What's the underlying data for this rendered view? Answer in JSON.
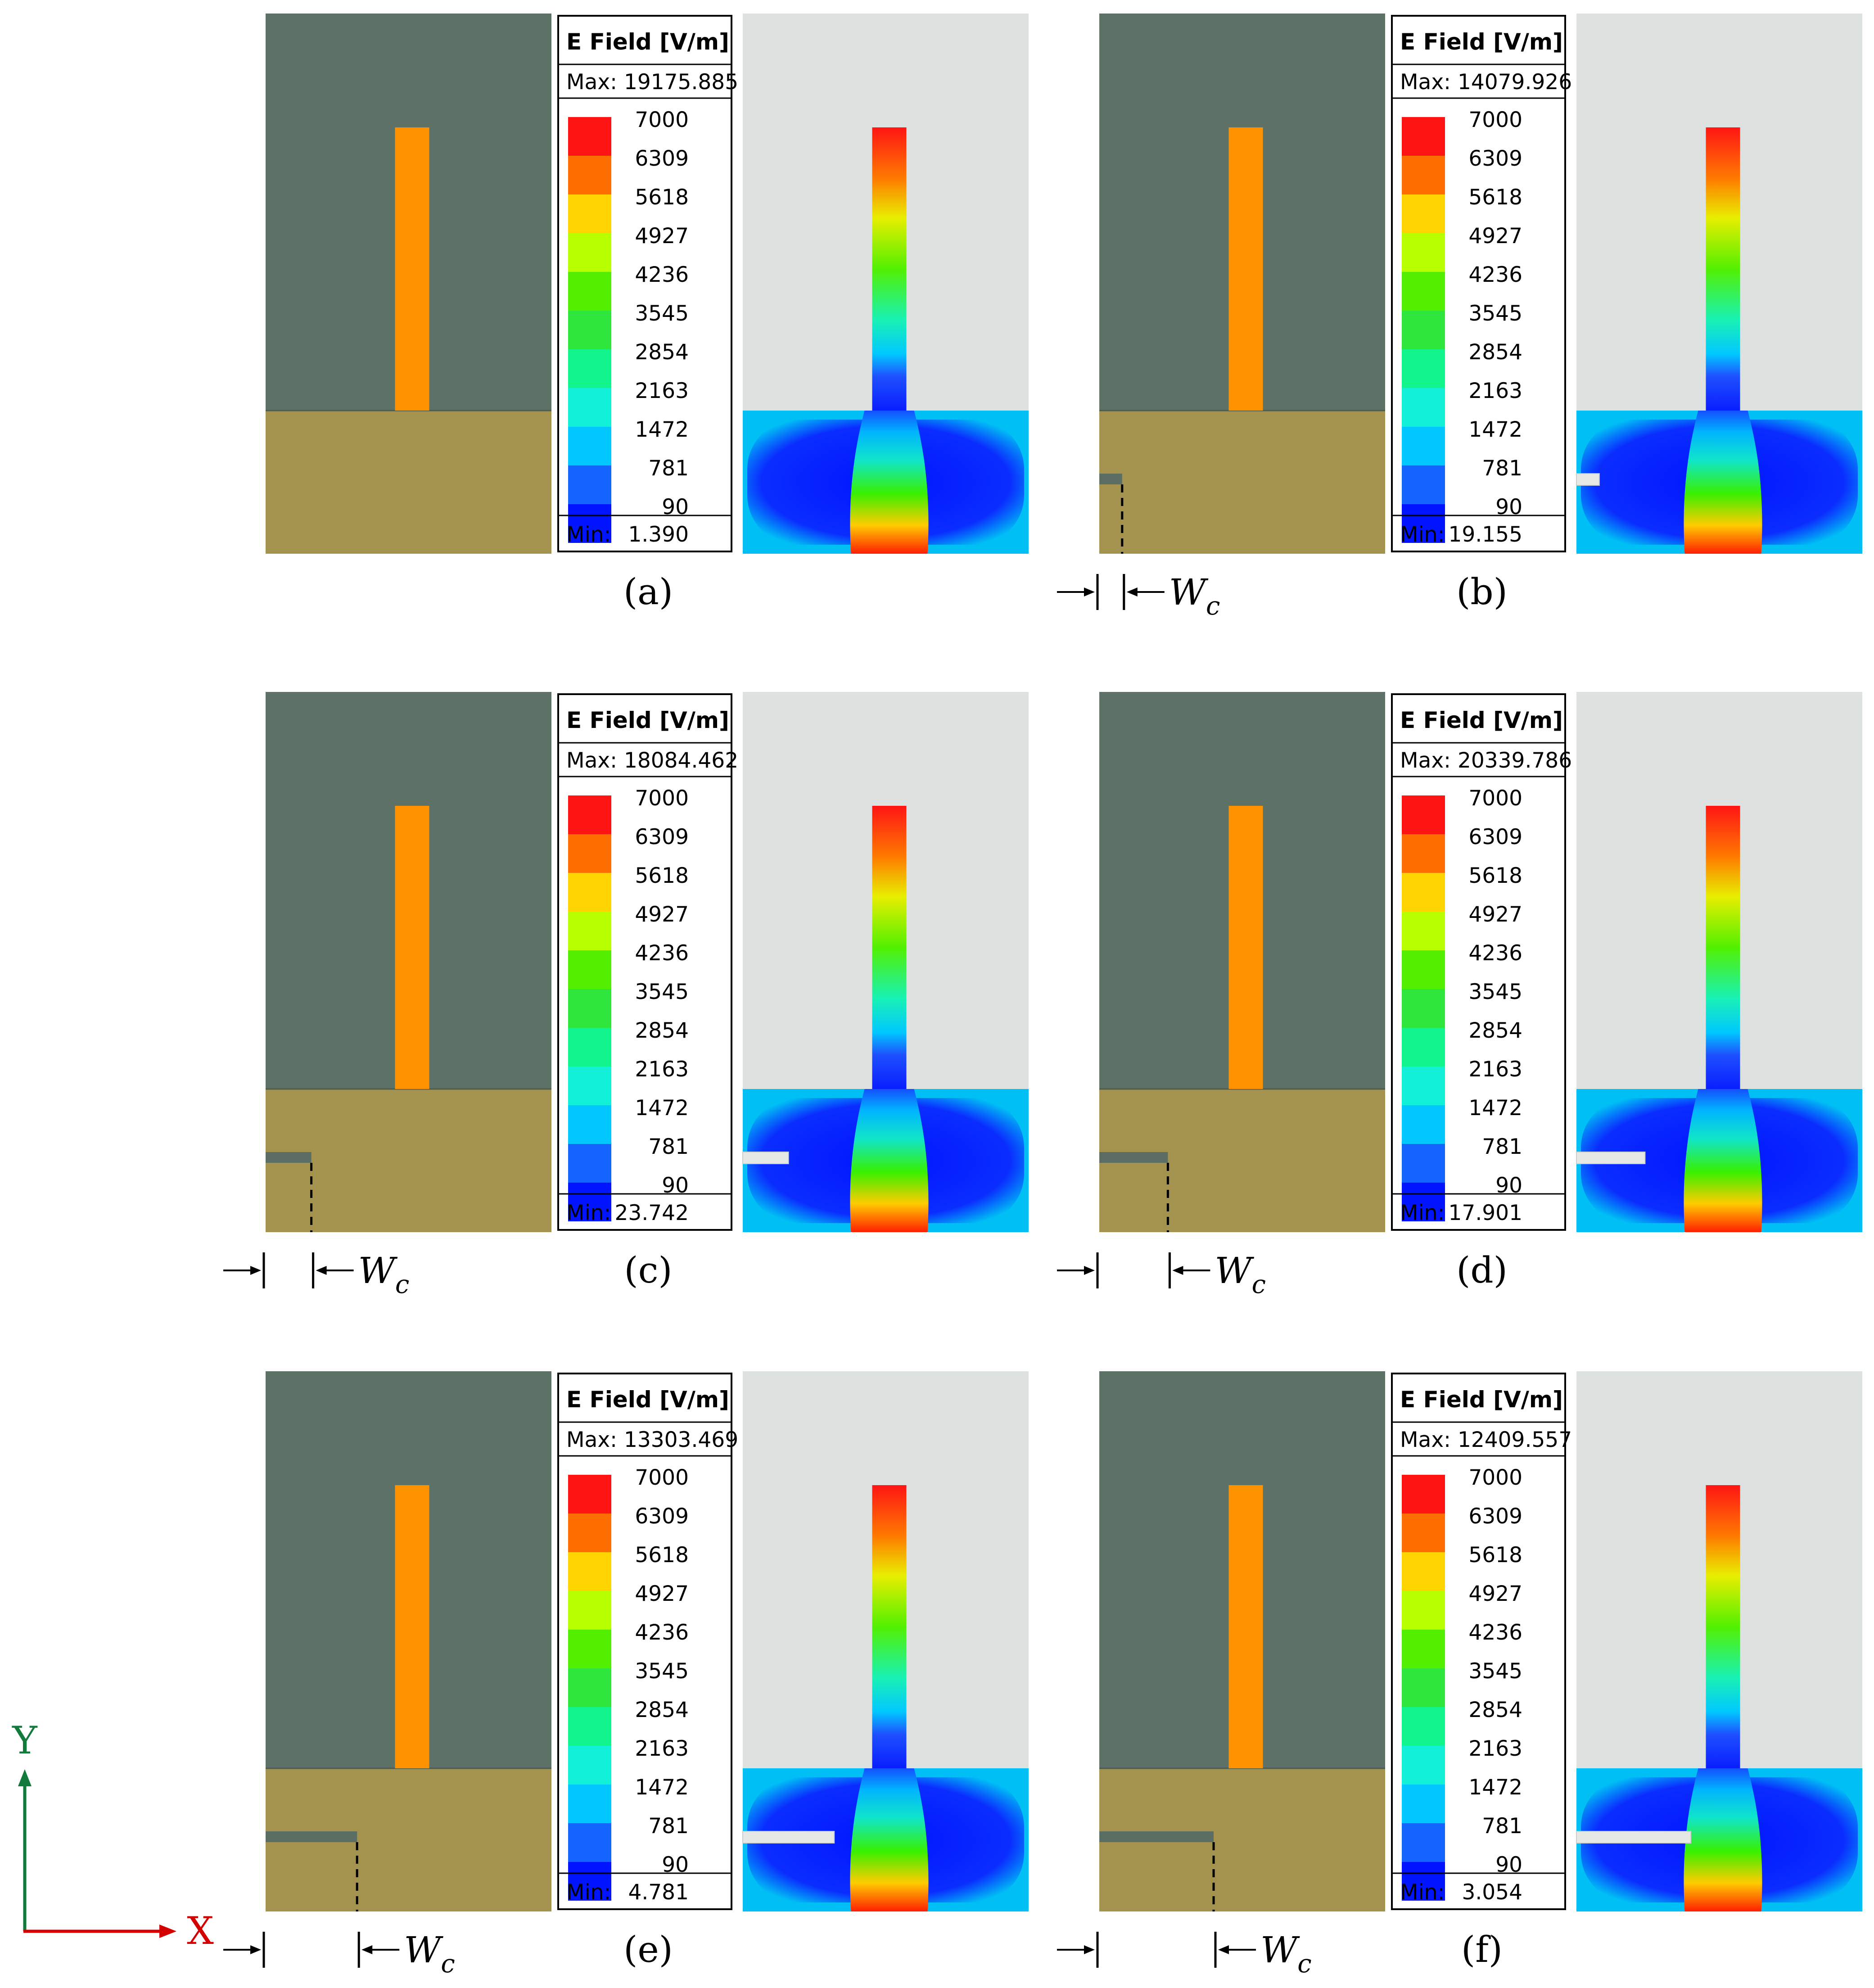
{
  "legend": {
    "title": "E Field [V/m]",
    "max_prefix": "Max:",
    "min_prefix": "Min:",
    "ticks": [
      "7000",
      "6309",
      "5618",
      "4927",
      "4236",
      "3545",
      "2854",
      "2163",
      "1472",
      "781",
      "90"
    ]
  },
  "colors": {
    "background_dark": "#5e7166",
    "ground_plane": "#a4924f",
    "feed_line": "#ff9200",
    "slot": "#5c6d64",
    "field_background": "#dde2e0",
    "colorbar": [
      "#ff1414",
      "#ff6e00",
      "#ffd400",
      "#b8ff00",
      "#52f000",
      "#2ee63c",
      "#12f58c",
      "#12f0d8",
      "#00c8ff",
      "#1464ff",
      "#0014ff"
    ]
  },
  "width_label": {
    "main": "W",
    "sub": "c"
  },
  "axes": {
    "x_label": "X",
    "y_label": "Y",
    "x_color": "#d40000",
    "y_color": "#127a3a"
  },
  "panels": [
    {
      "label": "(a)",
      "max": "19175.885",
      "min": "1.390",
      "slot_fraction": 0.0
    },
    {
      "label": "(b)",
      "max": "14079.926",
      "min": "19.155",
      "slot_fraction": 0.08
    },
    {
      "label": "(c)",
      "max": "18084.462",
      "min": "23.742",
      "slot_fraction": 0.16
    },
    {
      "label": "(d)",
      "max": "20339.786",
      "min": "17.901",
      "slot_fraction": 0.24
    },
    {
      "label": "(e)",
      "max": "13303.469",
      "min": "4.781",
      "slot_fraction": 0.32
    },
    {
      "label": "(f)",
      "max": "12409.557",
      "min": "3.054",
      "slot_fraction": 0.4
    }
  ]
}
